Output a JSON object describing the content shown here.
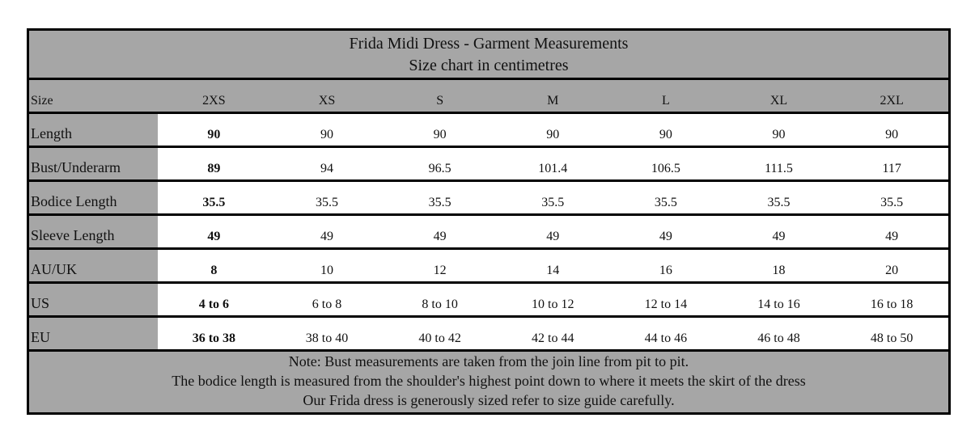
{
  "title": "Frida Midi Dress - Garment Measurements",
  "subtitle": "Size chart in centimetres",
  "header": {
    "label": "Size",
    "sizes": [
      "2XS",
      "XS",
      "S",
      "M",
      "L",
      "XL",
      "2XL"
    ]
  },
  "rows": [
    {
      "label": "Length",
      "values": [
        "90",
        "90",
        "90",
        "90",
        "90",
        "90",
        "90"
      ]
    },
    {
      "label": "Bust/Underarm",
      "values": [
        "89",
        "94",
        "96.5",
        "101.4",
        "106.5",
        "111.5",
        "117"
      ]
    },
    {
      "label": "Bodice Length",
      "values": [
        "35.5",
        "35.5",
        "35.5",
        "35.5",
        "35.5",
        "35.5",
        "35.5"
      ]
    },
    {
      "label": "Sleeve Length",
      "values": [
        "49",
        "49",
        "49",
        "49",
        "49",
        "49",
        "49"
      ]
    },
    {
      "label": "AU/UK",
      "values": [
        "8",
        "10",
        "12",
        "14",
        "16",
        "18",
        "20"
      ]
    },
    {
      "label": "US",
      "values": [
        "4 to 6",
        "6 to 8",
        "8 to 10",
        "10 to 12",
        "12 to 14",
        "14 to 16",
        "16 to 18"
      ]
    },
    {
      "label": "EU",
      "values": [
        "36 to 38",
        "38 to 40",
        "40 to 42",
        "42 to 44",
        "44 to 46",
        "46 to 48",
        "48 to 50"
      ]
    }
  ],
  "notes": [
    "Note: Bust measurements are taken from the join line from pit to pit.",
    "The bodice length is measured from the shoulder's highest point down to where it meets the skirt of the dress",
    "Our Frida dress is generously sized refer to size guide carefully."
  ],
  "colors": {
    "header_bg": "#a6a6a6",
    "border": "#000000",
    "cell_bg": "#ffffff"
  }
}
